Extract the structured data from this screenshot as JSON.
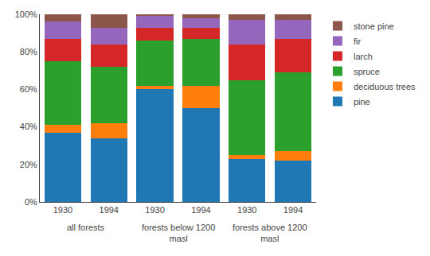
{
  "chart_data": {
    "type": "bar",
    "stacked": true,
    "categories": [
      "1930",
      "1994",
      "1930",
      "1994",
      "1930",
      "1994"
    ],
    "group_labels": [
      "all forests",
      "forests below 1200\nmasl",
      "forests above 1200\nmasl"
    ],
    "series": [
      {
        "name": "pine",
        "values": [
          37,
          34,
          60,
          50,
          23,
          22
        ]
      },
      {
        "name": "deciduous trees",
        "values": [
          4,
          8,
          2,
          12,
          2,
          5
        ]
      },
      {
        "name": "spruce",
        "values": [
          34,
          30,
          24,
          25,
          40,
          42
        ]
      },
      {
        "name": "larch",
        "values": [
          12,
          12,
          7,
          6,
          19,
          18
        ]
      },
      {
        "name": "fir",
        "values": [
          9,
          9,
          6,
          5,
          13,
          10
        ]
      },
      {
        "name": "stone pine",
        "values": [
          4,
          7,
          1,
          2,
          3,
          3
        ]
      }
    ],
    "ylim": [
      0,
      100
    ],
    "yticks": [
      {
        "value": 0,
        "label": "0%"
      },
      {
        "value": 20,
        "label": "20%"
      },
      {
        "value": 40,
        "label": "40%"
      },
      {
        "value": 60,
        "label": "60%"
      },
      {
        "value": 80,
        "label": "80%"
      },
      {
        "value": 100,
        "label": "100%"
      }
    ],
    "grid": false,
    "legend": "right"
  }
}
